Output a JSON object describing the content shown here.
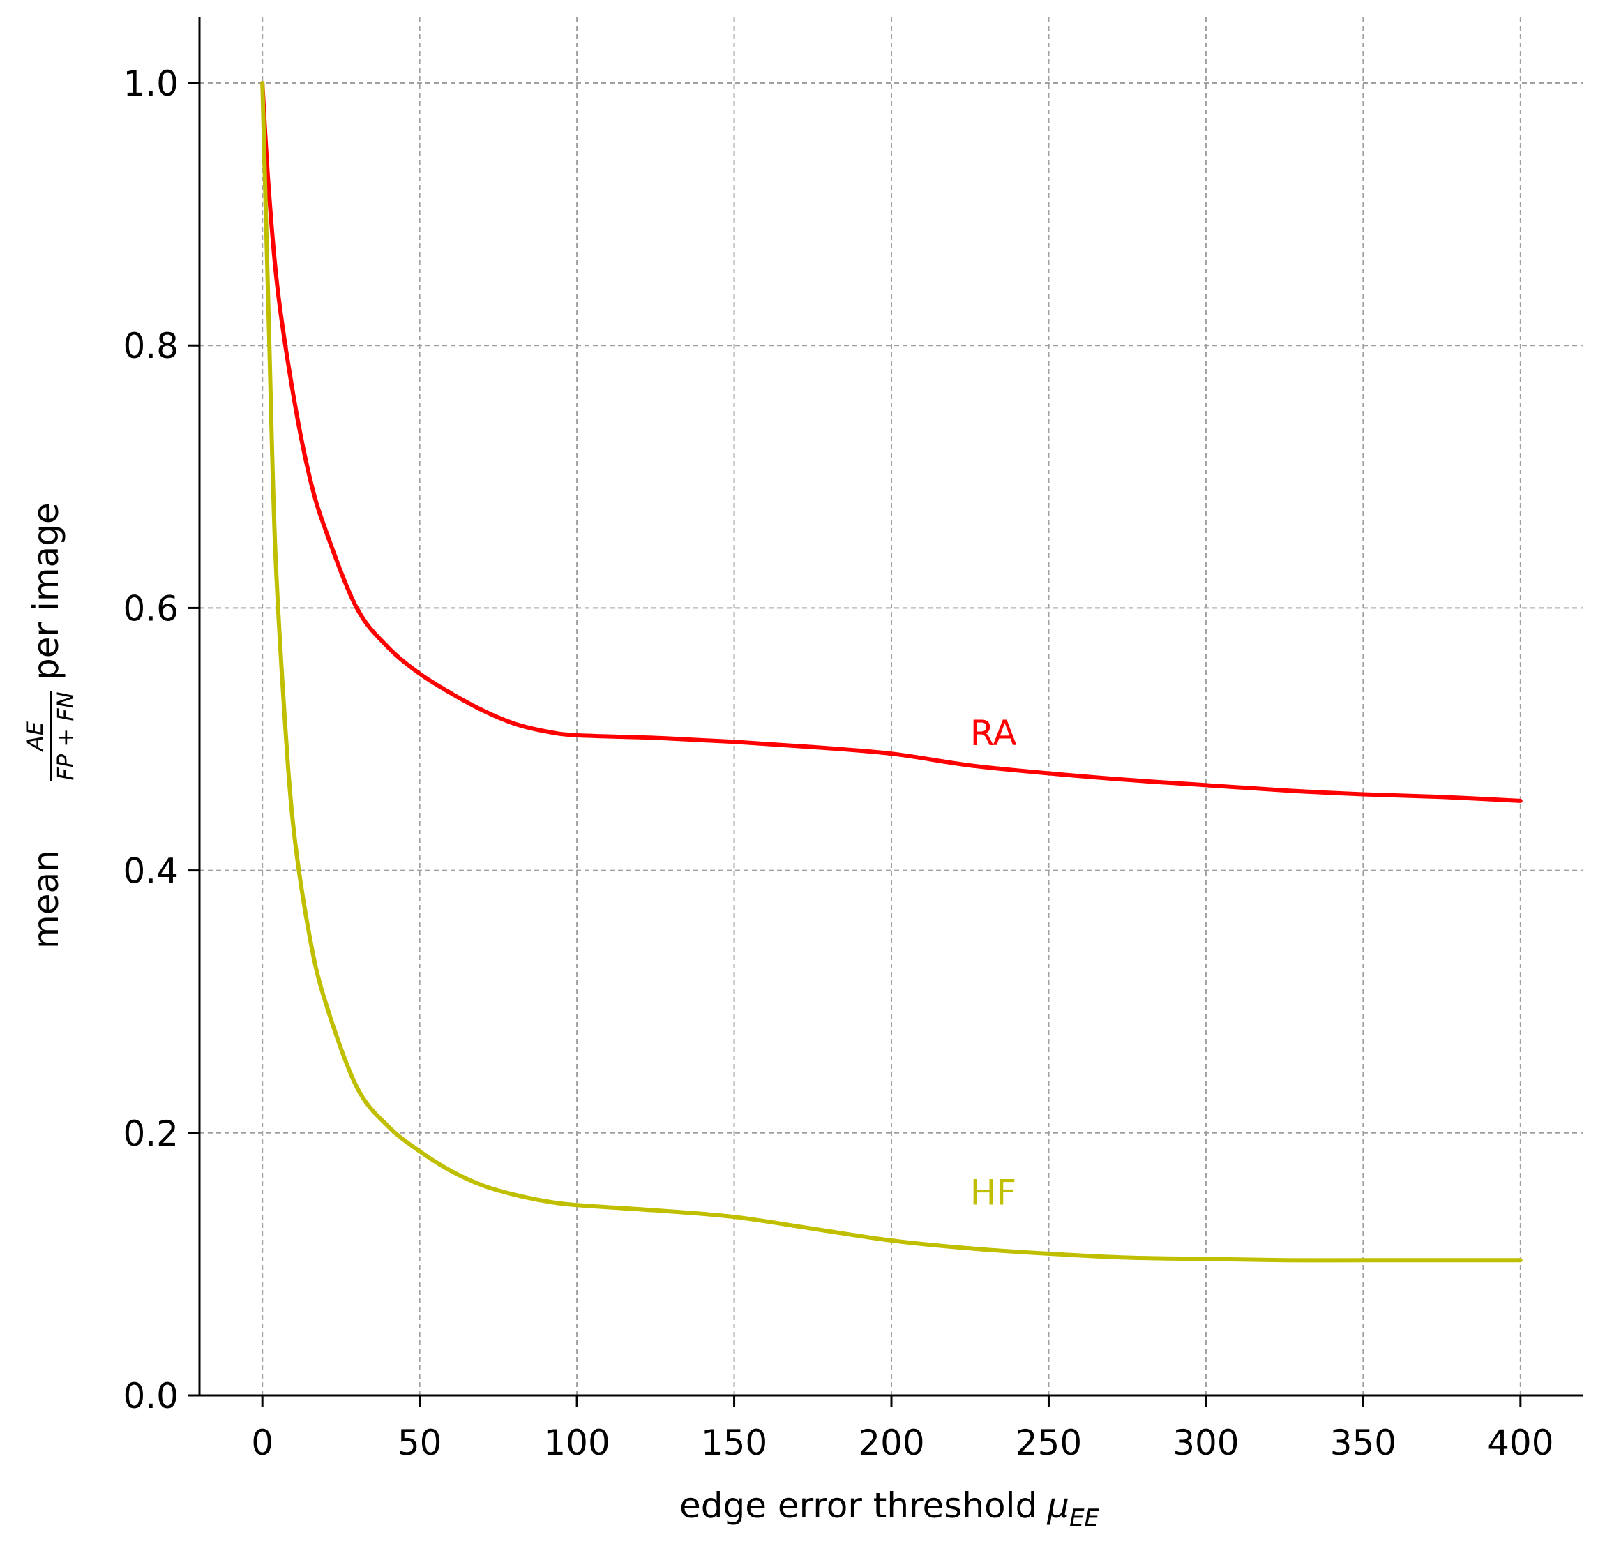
{
  "chart_data": {
    "type": "line",
    "xlabel": "edge error threshold",
    "xlabel_symbol": "μ",
    "xlabel_subscript": "EE",
    "ylabel_prefix": "mean",
    "ylabel_fraction_numerator": "AE",
    "ylabel_fraction_denominator": "FP + FN",
    "ylabel_suffix": "per image",
    "xlim": [
      -20,
      420
    ],
    "ylim": [
      0.0,
      1.05
    ],
    "x_ticks": [
      0,
      50,
      100,
      150,
      200,
      250,
      300,
      350,
      400
    ],
    "y_ticks": [
      0.0,
      0.2,
      0.4,
      0.6,
      0.8,
      1.0
    ],
    "x_tick_labels": [
      "0",
      "50",
      "100",
      "150",
      "200",
      "250",
      "300",
      "350",
      "400"
    ],
    "y_tick_labels": [
      "0.0",
      "0.2",
      "0.4",
      "0.6",
      "0.8",
      "1.0"
    ],
    "grid": true,
    "series": [
      {
        "name": "RA",
        "color": "#ff0000",
        "label_at": [
          225,
          0.505
        ],
        "x": [
          0,
          2,
          5,
          10,
          15,
          20,
          30,
          40,
          50,
          60,
          70,
          80,
          90,
          100,
          125,
          150,
          175,
          200,
          225,
          250,
          275,
          300,
          325,
          350,
          375,
          400
        ],
        "y": [
          1.0,
          0.92,
          0.84,
          0.76,
          0.7,
          0.66,
          0.6,
          0.57,
          0.55,
          0.535,
          0.522,
          0.512,
          0.506,
          0.503,
          0.501,
          0.498,
          0.494,
          0.489,
          0.48,
          0.474,
          0.469,
          0.465,
          0.461,
          0.458,
          0.456,
          0.453
        ]
      },
      {
        "name": "HF",
        "color": "#bfbf00",
        "label_at": [
          225,
          0.155
        ],
        "x": [
          0,
          2,
          4,
          7,
          10,
          15,
          20,
          30,
          40,
          50,
          60,
          70,
          80,
          90,
          100,
          125,
          150,
          175,
          200,
          225,
          250,
          275,
          300,
          325,
          350,
          375,
          400
        ],
        "y": [
          1.0,
          0.82,
          0.65,
          0.52,
          0.43,
          0.35,
          0.3,
          0.235,
          0.205,
          0.186,
          0.171,
          0.16,
          0.153,
          0.148,
          0.145,
          0.141,
          0.136,
          0.127,
          0.118,
          0.112,
          0.108,
          0.105,
          0.104,
          0.103,
          0.103,
          0.103,
          0.103
        ]
      }
    ]
  }
}
